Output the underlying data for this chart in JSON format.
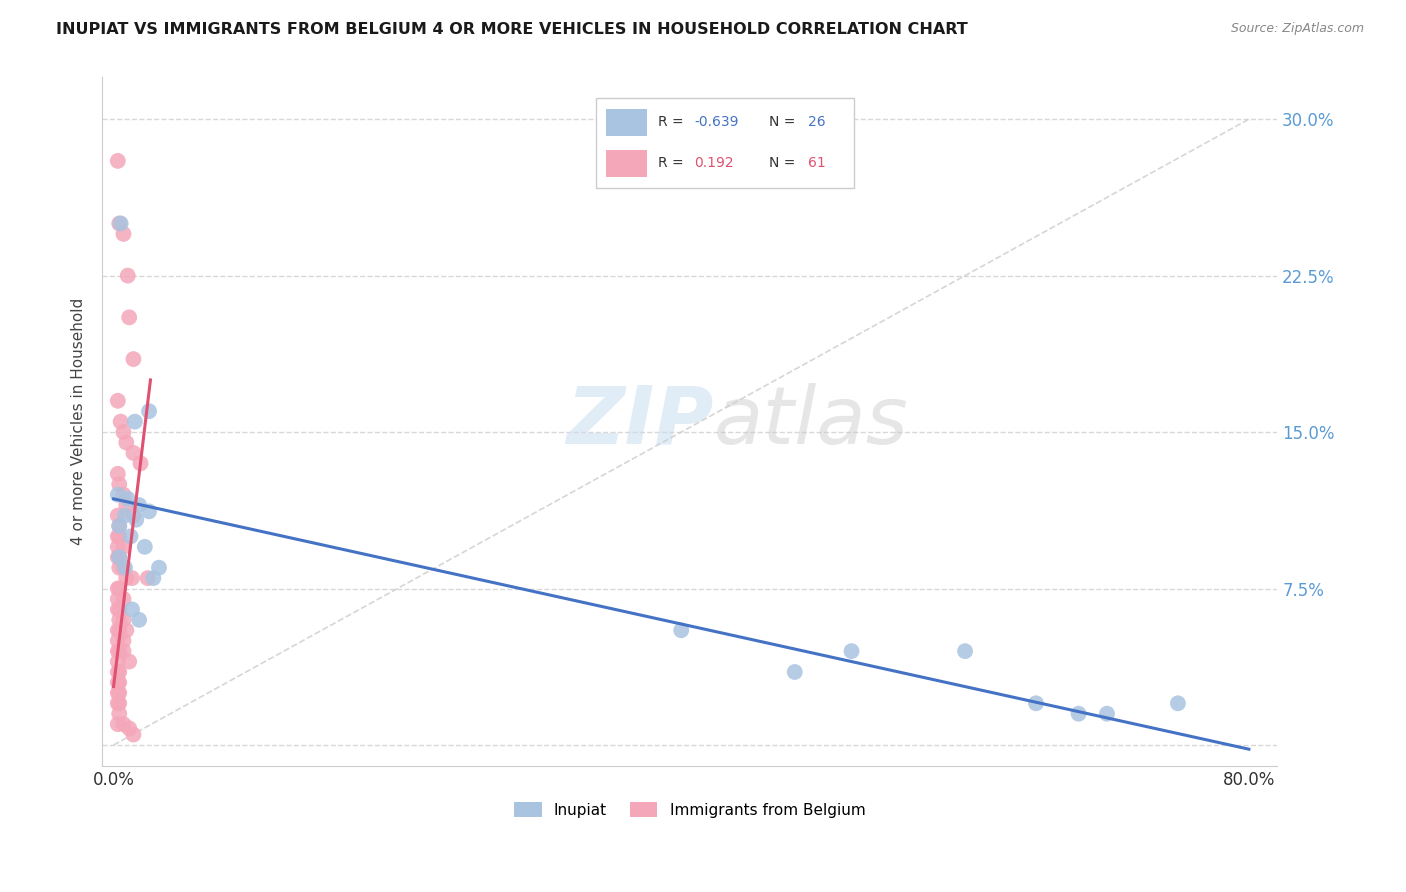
{
  "title": "INUPIAT VS IMMIGRANTS FROM BELGIUM 4 OR MORE VEHICLES IN HOUSEHOLD CORRELATION CHART",
  "source": "Source: ZipAtlas.com",
  "ylabel": "4 or more Vehicles in Household",
  "legend_label_blue": "Inupiat",
  "legend_label_pink": "Immigrants from Belgium",
  "blue_r": "-0.639",
  "blue_n": "26",
  "pink_r": "0.192",
  "pink_n": "61",
  "blue_color": "#a8c4e0",
  "pink_color": "#f4a7b9",
  "blue_line_color": "#4472c4",
  "pink_line_color": "#e05070",
  "title_color": "#1a1a1a",
  "source_color": "#888888",
  "right_axis_color": "#5b9bd5",
  "grid_color": "#d8d8d8",
  "blue_scatter_x": [
    0.005,
    0.025,
    0.015,
    0.018,
    0.008,
    0.004,
    0.012,
    0.022,
    0.004,
    0.008,
    0.032,
    0.028,
    0.013,
    0.018,
    0.52,
    0.6,
    0.65,
    0.68,
    0.7,
    0.75,
    0.4,
    0.48,
    0.003,
    0.01,
    0.016,
    0.025
  ],
  "blue_scatter_y": [
    0.25,
    0.16,
    0.155,
    0.115,
    0.11,
    0.105,
    0.1,
    0.095,
    0.09,
    0.085,
    0.085,
    0.08,
    0.065,
    0.06,
    0.045,
    0.045,
    0.02,
    0.015,
    0.015,
    0.02,
    0.055,
    0.035,
    0.12,
    0.118,
    0.108,
    0.112
  ],
  "pink_scatter_x": [
    0.003,
    0.004,
    0.007,
    0.01,
    0.011,
    0.014,
    0.003,
    0.005,
    0.007,
    0.009,
    0.014,
    0.019,
    0.003,
    0.004,
    0.007,
    0.009,
    0.014,
    0.003,
    0.004,
    0.003,
    0.004,
    0.007,
    0.003,
    0.004,
    0.003,
    0.004,
    0.007,
    0.009,
    0.013,
    0.024,
    0.003,
    0.004,
    0.007,
    0.003,
    0.004,
    0.003,
    0.004,
    0.007,
    0.009,
    0.003,
    0.004,
    0.007,
    0.003,
    0.004,
    0.003,
    0.007,
    0.011,
    0.003,
    0.004,
    0.003,
    0.004,
    0.003,
    0.004,
    0.003,
    0.004,
    0.003,
    0.004,
    0.003,
    0.007,
    0.011,
    0.014
  ],
  "pink_scatter_y": [
    0.28,
    0.25,
    0.245,
    0.225,
    0.205,
    0.185,
    0.165,
    0.155,
    0.15,
    0.145,
    0.14,
    0.135,
    0.13,
    0.125,
    0.12,
    0.115,
    0.11,
    0.11,
    0.105,
    0.1,
    0.1,
    0.095,
    0.095,
    0.09,
    0.09,
    0.085,
    0.085,
    0.08,
    0.08,
    0.08,
    0.075,
    0.075,
    0.07,
    0.07,
    0.065,
    0.065,
    0.06,
    0.06,
    0.055,
    0.055,
    0.055,
    0.05,
    0.05,
    0.045,
    0.045,
    0.045,
    0.04,
    0.04,
    0.035,
    0.035,
    0.03,
    0.03,
    0.025,
    0.025,
    0.02,
    0.02,
    0.015,
    0.01,
    0.01,
    0.008,
    0.005
  ],
  "blue_line_x0": 0.0,
  "blue_line_x1": 0.8,
  "blue_line_y0": 0.118,
  "blue_line_y1": -0.002,
  "pink_line_x0": 0.0,
  "pink_line_x1": 0.026,
  "pink_line_y0": 0.028,
  "pink_line_y1": 0.175,
  "diag_line_color": "#cccccc",
  "xlim_min": -0.008,
  "xlim_max": 0.82,
  "ylim_min": -0.01,
  "ylim_max": 0.32,
  "x_ticks": [
    0.0,
    0.1,
    0.2,
    0.3,
    0.4,
    0.5,
    0.6,
    0.7,
    0.8
  ],
  "y_ticks": [
    0.0,
    0.075,
    0.15,
    0.225,
    0.3
  ]
}
